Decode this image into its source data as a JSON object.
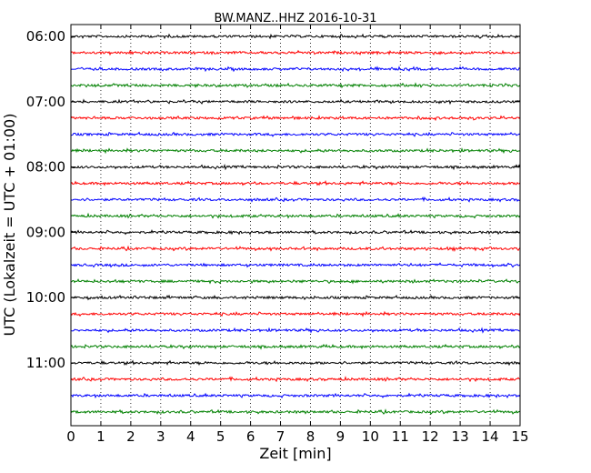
{
  "chart_data": {
    "type": "line",
    "title": "BW.MANZ..HHZ 2016-10-31",
    "xlabel": "Zeit  [min]",
    "ylabel": "UTC (Lokalzeit = UTC + 01:00)",
    "xlim": [
      0,
      15
    ],
    "x_ticks": [
      0,
      1,
      2,
      3,
      4,
      5,
      6,
      7,
      8,
      9,
      10,
      11,
      12,
      13,
      14,
      15
    ],
    "y_ticks": [
      "06:00",
      "07:00",
      "08:00",
      "09:00",
      "10:00",
      "11:00"
    ],
    "grid": "vertical dotted",
    "trace_interval_minutes": 15,
    "trace_start_time": "06:00",
    "trace_count": 24,
    "colors": [
      "#000000",
      "#ff0000",
      "#0000ff",
      "#008000"
    ]
  }
}
